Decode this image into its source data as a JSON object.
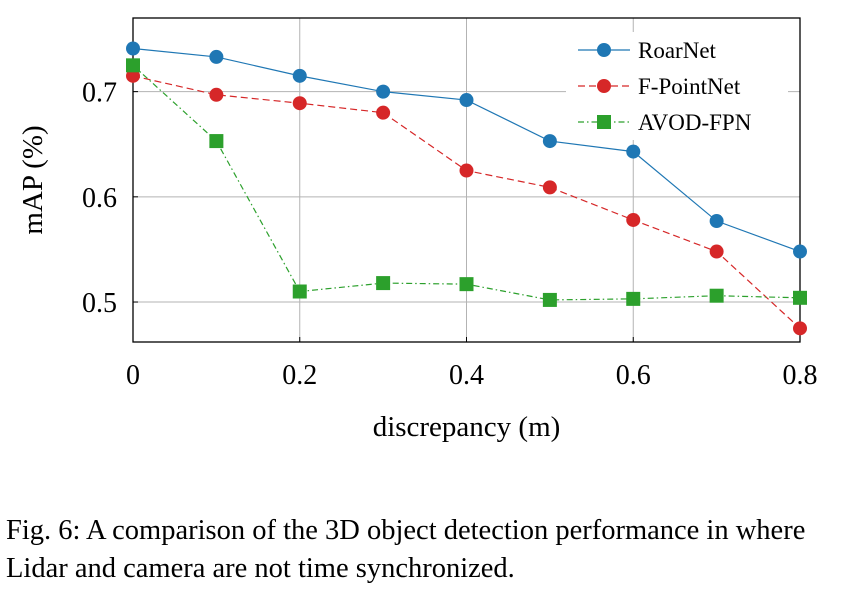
{
  "chart_data": {
    "type": "line",
    "xlabel": "discrepancy (m)",
    "ylabel": "mAP (%)",
    "xlim": [
      0,
      0.8
    ],
    "ylim": [
      0.462,
      0.77
    ],
    "xticks": [
      0,
      0.2,
      0.4,
      0.6,
      0.8
    ],
    "xtick_labels": [
      "0",
      "0.2",
      "0.4",
      "0.6",
      "0.8"
    ],
    "yticks": [
      0.5,
      0.6,
      0.7
    ],
    "ytick_labels": [
      "0.5",
      "0.6",
      "0.7"
    ],
    "grid": true,
    "legend_position": "top-right",
    "x": [
      0,
      0.1,
      0.2,
      0.3,
      0.4,
      0.5,
      0.6,
      0.7,
      0.8
    ],
    "series": [
      {
        "name": "RoarNet",
        "color": "#1f77b4",
        "dash": "solid",
        "marker": "circle",
        "values": [
          0.741,
          0.733,
          0.715,
          0.7,
          0.692,
          0.653,
          0.643,
          0.577,
          0.548
        ]
      },
      {
        "name": "F-PointNet",
        "color": "#d62728",
        "dash": "dashed",
        "marker": "circle",
        "values": [
          0.715,
          0.697,
          0.689,
          0.68,
          0.625,
          0.609,
          0.578,
          0.548,
          0.475
        ]
      },
      {
        "name": "AVOD-FPN",
        "color": "#2ca02c",
        "dash": "dashdot",
        "marker": "square",
        "values": [
          0.725,
          0.653,
          0.51,
          0.518,
          0.517,
          0.502,
          0.503,
          0.506,
          0.504
        ]
      }
    ]
  },
  "caption": "Fig. 6: A comparison of the 3D object detection performance in where Lidar and camera are not time synchronized."
}
